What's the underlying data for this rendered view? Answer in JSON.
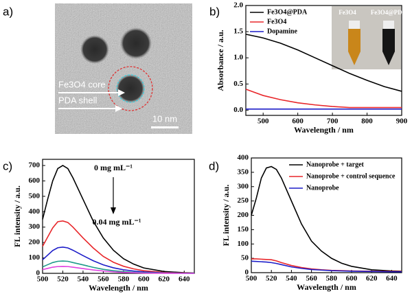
{
  "image_panel": {
    "panel_label": "a)",
    "labels": [
      "Fe3O4 core",
      "PDA shell"
    ],
    "scale_bar": "10 nm"
  },
  "chart_data": [
    {
      "type": "line",
      "panel_label": "b)",
      "xlabel": "Wavelength / nm",
      "ylabel": "Absorbance / a.u.",
      "x": [
        450,
        500,
        550,
        600,
        650,
        700,
        750,
        800,
        850,
        900
      ],
      "xlim": [
        450,
        900
      ],
      "xticks": [
        500,
        600,
        700,
        800,
        900
      ],
      "ylim": [
        -0.1,
        2.0
      ],
      "yticks": [
        {
          "value": 0,
          "label": "0.0"
        },
        {
          "value": 0.5,
          "label": "0.5"
        },
        {
          "value": 1,
          "label": "1.0"
        },
        {
          "value": 1.5,
          "label": "1.5"
        },
        {
          "value": 2,
          "label": "2.0"
        }
      ],
      "legend": "upper left",
      "inset_labels": [
        "Fe3O4",
        "Fe3O4@PDA"
      ],
      "series": [
        {
          "name": "Fe3O4@PDA",
          "color": "#000000",
          "values": [
            1.45,
            1.38,
            1.28,
            1.15,
            1.0,
            0.85,
            0.7,
            0.57,
            0.45,
            0.36
          ]
        },
        {
          "name": "Fe3O4",
          "color": "#e8262a",
          "values": [
            0.4,
            0.28,
            0.2,
            0.14,
            0.1,
            0.07,
            0.05,
            0.05,
            0.05,
            0.05
          ]
        },
        {
          "name": "Dopamine",
          "color": "#1c1cc8",
          "values": [
            0.02,
            0.02,
            0.02,
            0.02,
            0.02,
            0.02,
            0.02,
            0.02,
            0.02,
            0.02
          ]
        }
      ]
    },
    {
      "type": "line",
      "panel_label": "c)",
      "xlabel": "Wavelength / nm",
      "ylabel": "FL intensity / a.u.",
      "x": [
        500,
        505,
        510,
        515,
        520,
        525,
        530,
        540,
        550,
        560,
        570,
        580,
        590,
        600,
        620,
        640,
        650
      ],
      "xlim": [
        500,
        650
      ],
      "xticks": [
        500,
        520,
        540,
        560,
        580,
        600,
        620,
        640
      ],
      "ylim": [
        0,
        740
      ],
      "yticks": [
        0,
        100,
        200,
        300,
        400,
        500,
        600,
        700
      ],
      "annotations": [
        "0 mg mL⁻¹",
        "0.04 mg mL⁻¹"
      ],
      "series": [
        {
          "color": "#000000",
          "values": [
            350,
            480,
            600,
            680,
            700,
            680,
            620,
            480,
            340,
            230,
            150,
            95,
            60,
            35,
            12,
            4,
            2
          ]
        },
        {
          "color": "#e8262a",
          "values": [
            175,
            235,
            295,
            335,
            340,
            330,
            300,
            230,
            165,
            110,
            72,
            46,
            29,
            17,
            6,
            2,
            1
          ]
        },
        {
          "color": "#1c1cc8",
          "values": [
            88,
            118,
            148,
            166,
            170,
            165,
            150,
            115,
            82,
            55,
            36,
            23,
            15,
            9,
            3,
            1,
            1
          ]
        },
        {
          "color": "#1f9a8a",
          "values": [
            42,
            56,
            70,
            78,
            80,
            78,
            70,
            55,
            39,
            26,
            17,
            11,
            7,
            4,
            2,
            1,
            0
          ]
        },
        {
          "color": "#e040e0",
          "values": [
            24,
            32,
            40,
            44,
            45,
            44,
            40,
            31,
            22,
            15,
            10,
            6,
            4,
            2,
            1,
            0,
            0
          ]
        }
      ]
    },
    {
      "type": "line",
      "panel_label": "d)",
      "xlabel": "Wavelength / nm",
      "ylabel": "FL intensity / a.u.",
      "x": [
        500,
        505,
        510,
        515,
        520,
        525,
        530,
        540,
        550,
        560,
        570,
        580,
        590,
        600,
        620,
        640,
        650
      ],
      "xlim": [
        500,
        650
      ],
      "xticks": [
        500,
        520,
        540,
        560,
        580,
        600,
        620,
        640
      ],
      "ylim": [
        0,
        400
      ],
      "yticks": [
        0,
        50,
        100,
        150,
        200,
        250,
        300,
        350,
        400
      ],
      "legend": "upper right",
      "series": [
        {
          "name": "Nanoprobe + target",
          "color": "#000000",
          "values": [
            200,
            260,
            330,
            365,
            370,
            360,
            330,
            250,
            170,
            110,
            75,
            50,
            33,
            22,
            10,
            6,
            5
          ]
        },
        {
          "name": "Nanoprobe + control sequence",
          "color": "#e8262a",
          "values": [
            48,
            48,
            47,
            46,
            45,
            41,
            35,
            25,
            18,
            13,
            10,
            8,
            7,
            6,
            5,
            4,
            4
          ]
        },
        {
          "name": "Nanoprobe",
          "color": "#1c1cc8",
          "values": [
            40,
            39,
            38,
            37,
            35,
            32,
            28,
            20,
            15,
            11,
            9,
            7,
            6,
            5,
            4,
            3,
            3
          ]
        }
      ]
    }
  ]
}
